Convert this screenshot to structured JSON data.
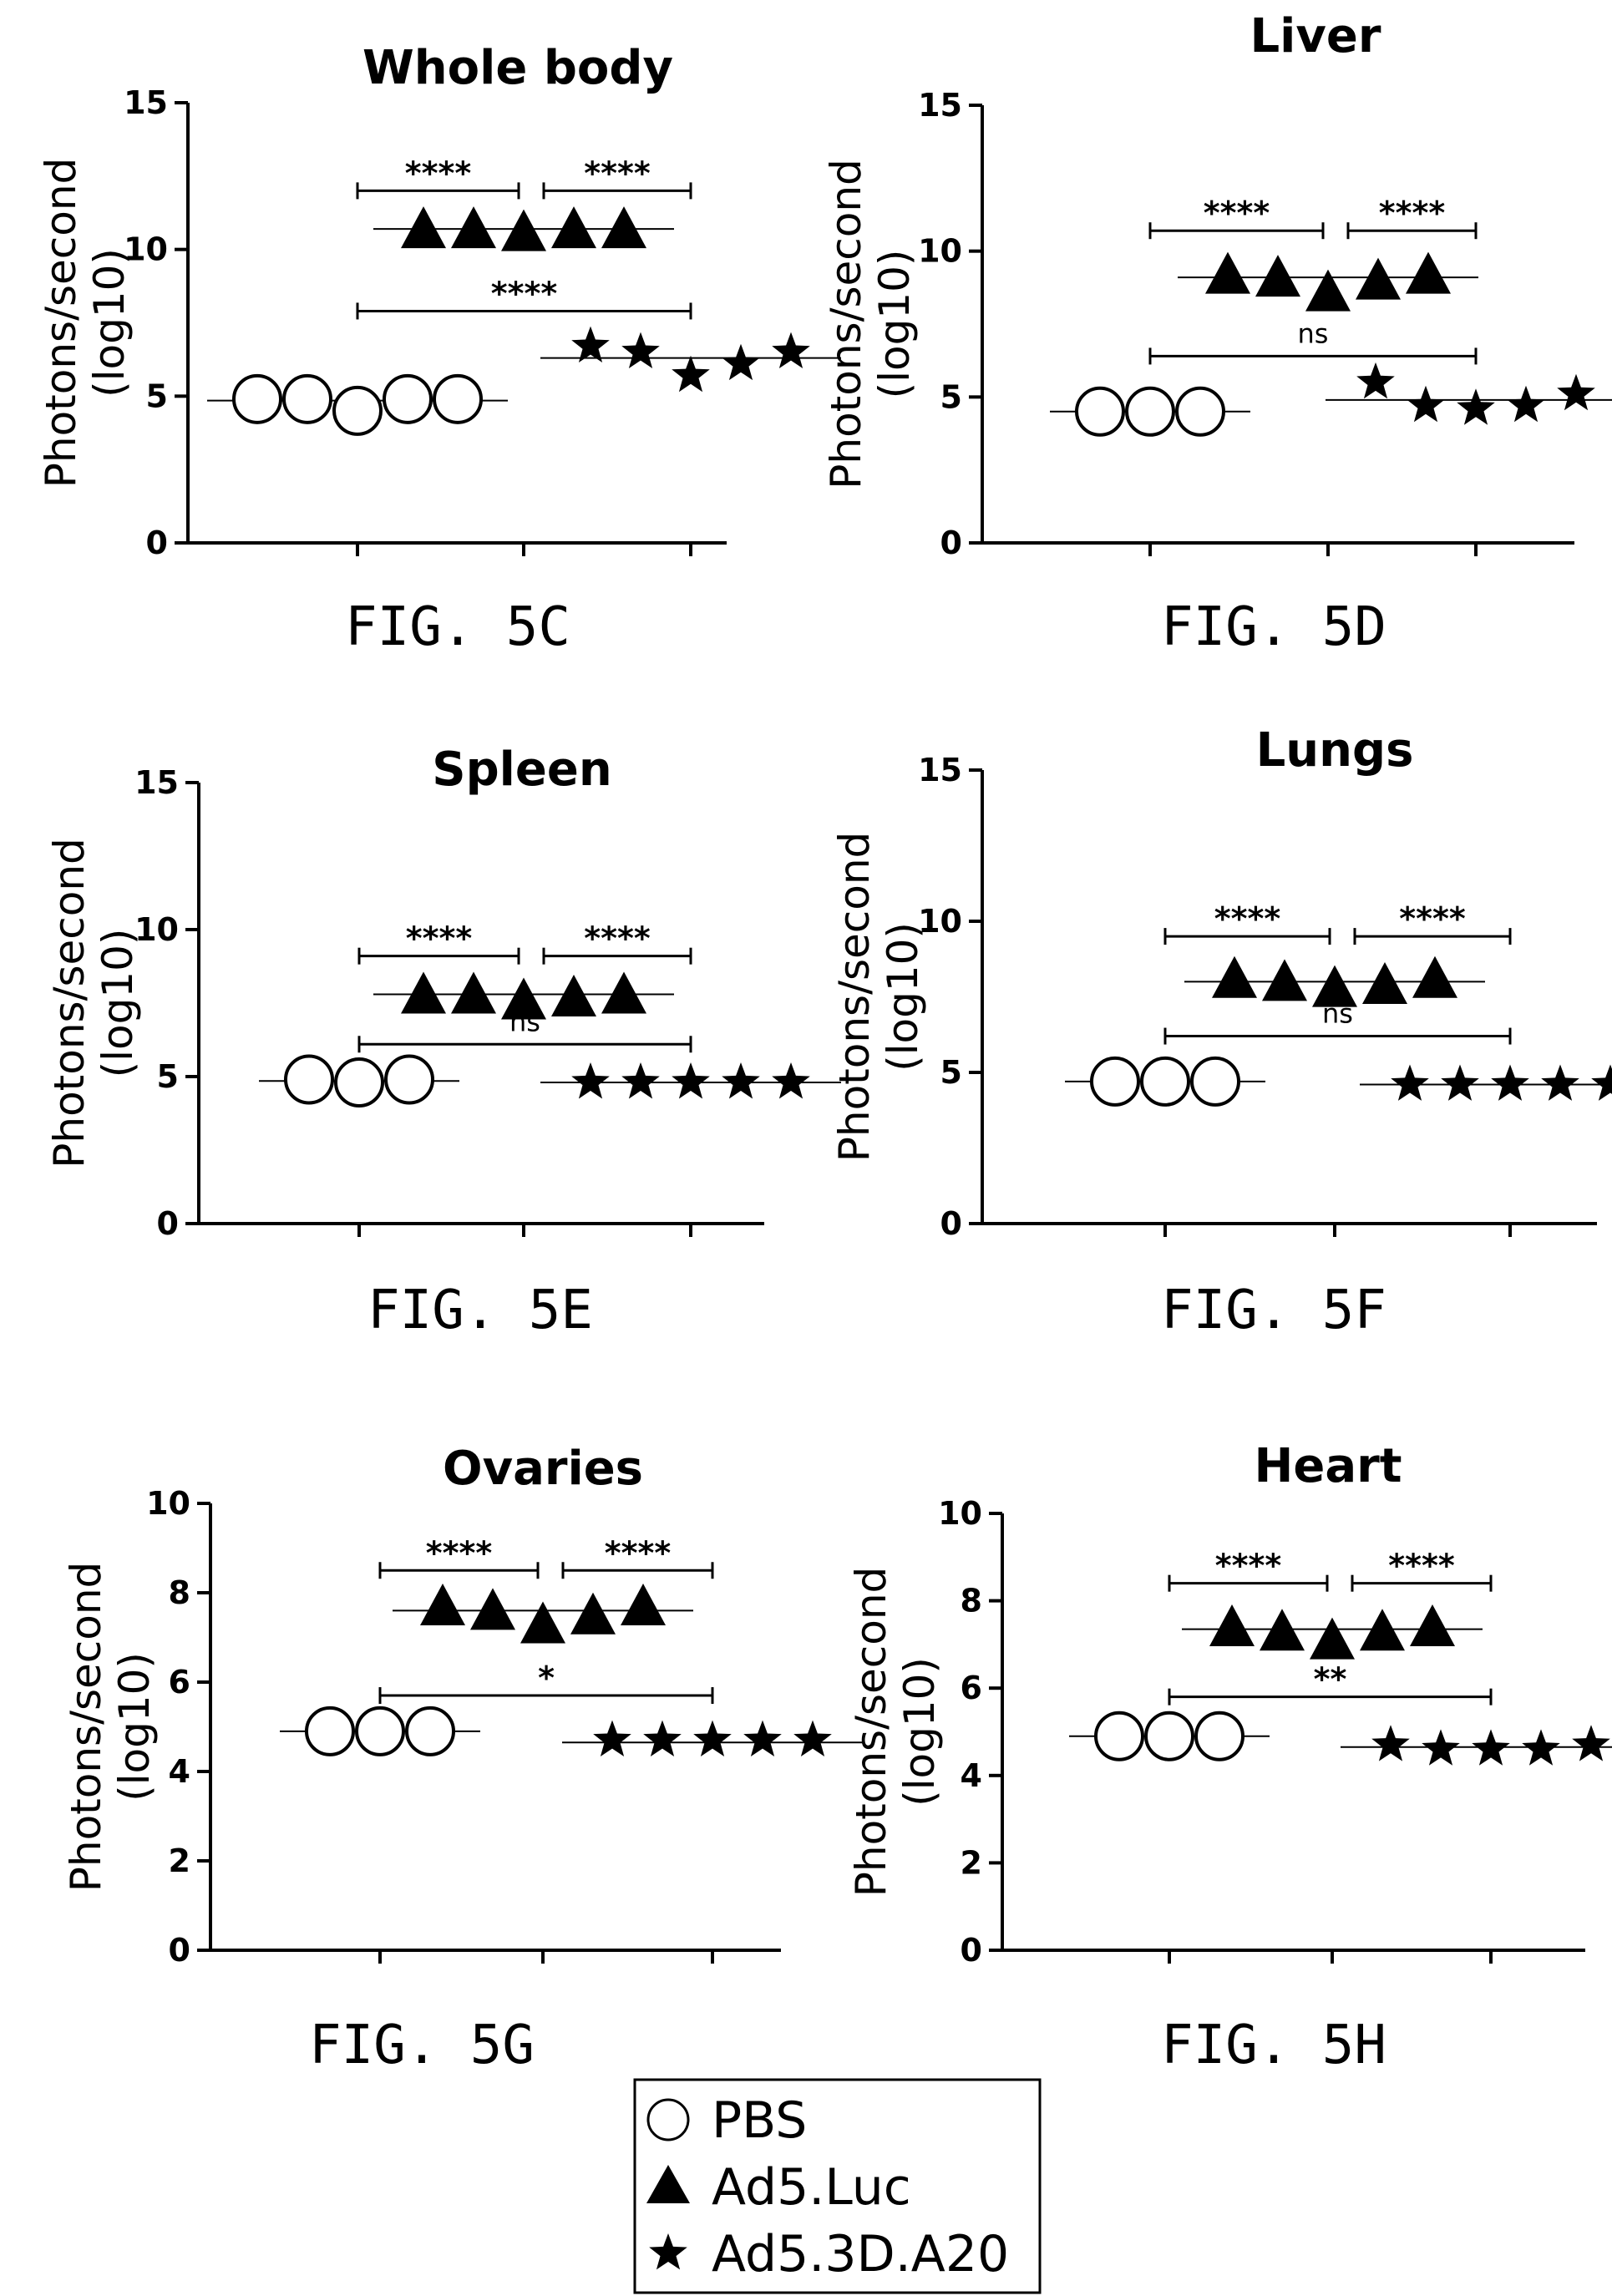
{
  "legend": {
    "items": [
      {
        "label": "PBS",
        "marker": "circle"
      },
      {
        "label": "Ad5.Luc",
        "marker": "triangle"
      },
      {
        "label": "Ad5.3D.A20",
        "marker": "star"
      }
    ]
  },
  "chart_data": [
    {
      "type": "scatter",
      "title": "Whole body",
      "caption": "FIG. 5C",
      "ylabel": [
        "Photons/second",
        "(log10)"
      ],
      "ylim": [
        0,
        15
      ],
      "yticks": [
        0,
        5,
        10,
        15
      ],
      "groups": [
        {
          "name": "PBS",
          "marker": "circle",
          "values": [
            4.9,
            4.9,
            4.5,
            4.9,
            4.9
          ],
          "mean": 4.85
        },
        {
          "name": "Ad5.Luc",
          "marker": "triangle",
          "values": [
            10.7,
            10.7,
            10.6,
            10.7,
            10.7
          ],
          "mean": 10.7
        },
        {
          "name": "Ad5.3D.A20",
          "marker": "star",
          "values": [
            6.7,
            6.5,
            5.7,
            6.1,
            6.5
          ],
          "mean": 6.3
        }
      ],
      "comparisons": [
        {
          "from": 0,
          "to": 1,
          "label": "****",
          "y": 12.0
        },
        {
          "from": 1,
          "to": 2,
          "label": "****",
          "y": 12.0
        },
        {
          "from": 0,
          "to": 2,
          "label": "****",
          "y": 7.9
        }
      ]
    },
    {
      "type": "scatter",
      "title": "Liver",
      "caption": "FIG. 5D",
      "ylabel": [
        "Photons/second",
        "(log10)"
      ],
      "ylim": [
        0,
        15
      ],
      "yticks": [
        0,
        5,
        10,
        15
      ],
      "groups": [
        {
          "name": "PBS",
          "marker": "circle",
          "values": [
            4.5,
            4.5,
            4.5
          ],
          "mean": 4.5
        },
        {
          "name": "Ad5.Luc",
          "marker": "triangle",
          "values": [
            9.2,
            9.1,
            8.6,
            9.0,
            9.2
          ],
          "mean": 9.1
        },
        {
          "name": "Ad5.3D.A20",
          "marker": "star",
          "values": [
            5.5,
            4.7,
            4.6,
            4.7,
            5.1
          ],
          "mean": 4.9
        }
      ],
      "comparisons": [
        {
          "from": 0,
          "to": 1,
          "label": "****",
          "y": 10.7
        },
        {
          "from": 1,
          "to": 2,
          "label": "****",
          "y": 10.7
        },
        {
          "from": 0,
          "to": 2,
          "label": "ns",
          "y": 6.4
        }
      ]
    },
    {
      "type": "scatter",
      "title": "Spleen",
      "caption": "FIG. 5E",
      "ylabel": [
        "Photons/second",
        "(log10)"
      ],
      "ylim": [
        0,
        15
      ],
      "yticks": [
        0,
        5,
        10,
        15
      ],
      "groups": [
        {
          "name": "PBS",
          "marker": "circle",
          "values": [
            4.9,
            4.8,
            4.9
          ],
          "mean": 4.85
        },
        {
          "name": "Ad5.Luc",
          "marker": "triangle",
          "values": [
            7.8,
            7.8,
            7.6,
            7.7,
            7.8
          ],
          "mean": 7.8
        },
        {
          "name": "Ad5.3D.A20",
          "marker": "star",
          "values": [
            4.8,
            4.8,
            4.8,
            4.8,
            4.8
          ],
          "mean": 4.8
        }
      ],
      "comparisons": [
        {
          "from": 0,
          "to": 1,
          "label": "****",
          "y": 9.1
        },
        {
          "from": 1,
          "to": 2,
          "label": "****",
          "y": 9.1
        },
        {
          "from": 0,
          "to": 2,
          "label": "ns",
          "y": 6.1
        }
      ]
    },
    {
      "type": "scatter",
      "title": "Lungs",
      "caption": "FIG. 5F",
      "ylabel": [
        "Photons/second",
        "(log10)"
      ],
      "ylim": [
        0,
        15
      ],
      "yticks": [
        0,
        5,
        10,
        15
      ],
      "groups": [
        {
          "name": "PBS",
          "marker": "circle",
          "values": [
            4.7,
            4.7,
            4.7
          ],
          "mean": 4.7
        },
        {
          "name": "Ad5.Luc",
          "marker": "triangle",
          "values": [
            8.1,
            8.0,
            7.8,
            7.9,
            8.1
          ],
          "mean": 8.0
        },
        {
          "name": "Ad5.3D.A20",
          "marker": "star",
          "values": [
            4.6,
            4.6,
            4.6,
            4.6,
            4.6
          ],
          "mean": 4.6
        }
      ],
      "comparisons": [
        {
          "from": 0,
          "to": 1,
          "label": "****",
          "y": 9.5
        },
        {
          "from": 1,
          "to": 2,
          "label": "****",
          "y": 9.5
        },
        {
          "from": 0,
          "to": 2,
          "label": "ns",
          "y": 6.2
        }
      ]
    },
    {
      "type": "scatter",
      "title": "Ovaries",
      "caption": "FIG. 5G",
      "ylabel": [
        "Photons/second",
        "(log10)"
      ],
      "ylim": [
        0,
        10
      ],
      "yticks": [
        0,
        2,
        4,
        6,
        8,
        10
      ],
      "groups": [
        {
          "name": "PBS",
          "marker": "circle",
          "values": [
            4.9,
            4.9,
            4.9
          ],
          "mean": 4.9
        },
        {
          "name": "Ad5.Luc",
          "marker": "triangle",
          "values": [
            7.7,
            7.6,
            7.3,
            7.5,
            7.7
          ],
          "mean": 7.6
        },
        {
          "name": "Ad5.3D.A20",
          "marker": "star",
          "values": [
            4.7,
            4.7,
            4.7,
            4.7,
            4.7
          ],
          "mean": 4.65
        }
      ],
      "comparisons": [
        {
          "from": 0,
          "to": 1,
          "label": "****",
          "y": 8.5
        },
        {
          "from": 1,
          "to": 2,
          "label": "****",
          "y": 8.5
        },
        {
          "from": 0,
          "to": 2,
          "label": "*",
          "y": 5.7
        }
      ]
    },
    {
      "type": "scatter",
      "title": "Heart",
      "caption": "FIG. 5H",
      "ylabel": [
        "Photons/second",
        "(log10)"
      ],
      "ylim": [
        0,
        10
      ],
      "yticks": [
        0,
        2,
        4,
        6,
        8,
        10
      ],
      "groups": [
        {
          "name": "PBS",
          "marker": "circle",
          "values": [
            4.9,
            4.9,
            4.9
          ],
          "mean": 4.9
        },
        {
          "name": "Ad5.Luc",
          "marker": "triangle",
          "values": [
            7.4,
            7.3,
            7.1,
            7.3,
            7.4
          ],
          "mean": 7.35
        },
        {
          "name": "Ad5.3D.A20",
          "marker": "star",
          "values": [
            4.7,
            4.6,
            4.6,
            4.6,
            4.7
          ],
          "mean": 4.65
        }
      ],
      "comparisons": [
        {
          "from": 0,
          "to": 1,
          "label": "****",
          "y": 8.4
        },
        {
          "from": 1,
          "to": 2,
          "label": "****",
          "y": 8.4
        },
        {
          "from": 0,
          "to": 2,
          "label": "**",
          "y": 5.8
        }
      ]
    }
  ]
}
